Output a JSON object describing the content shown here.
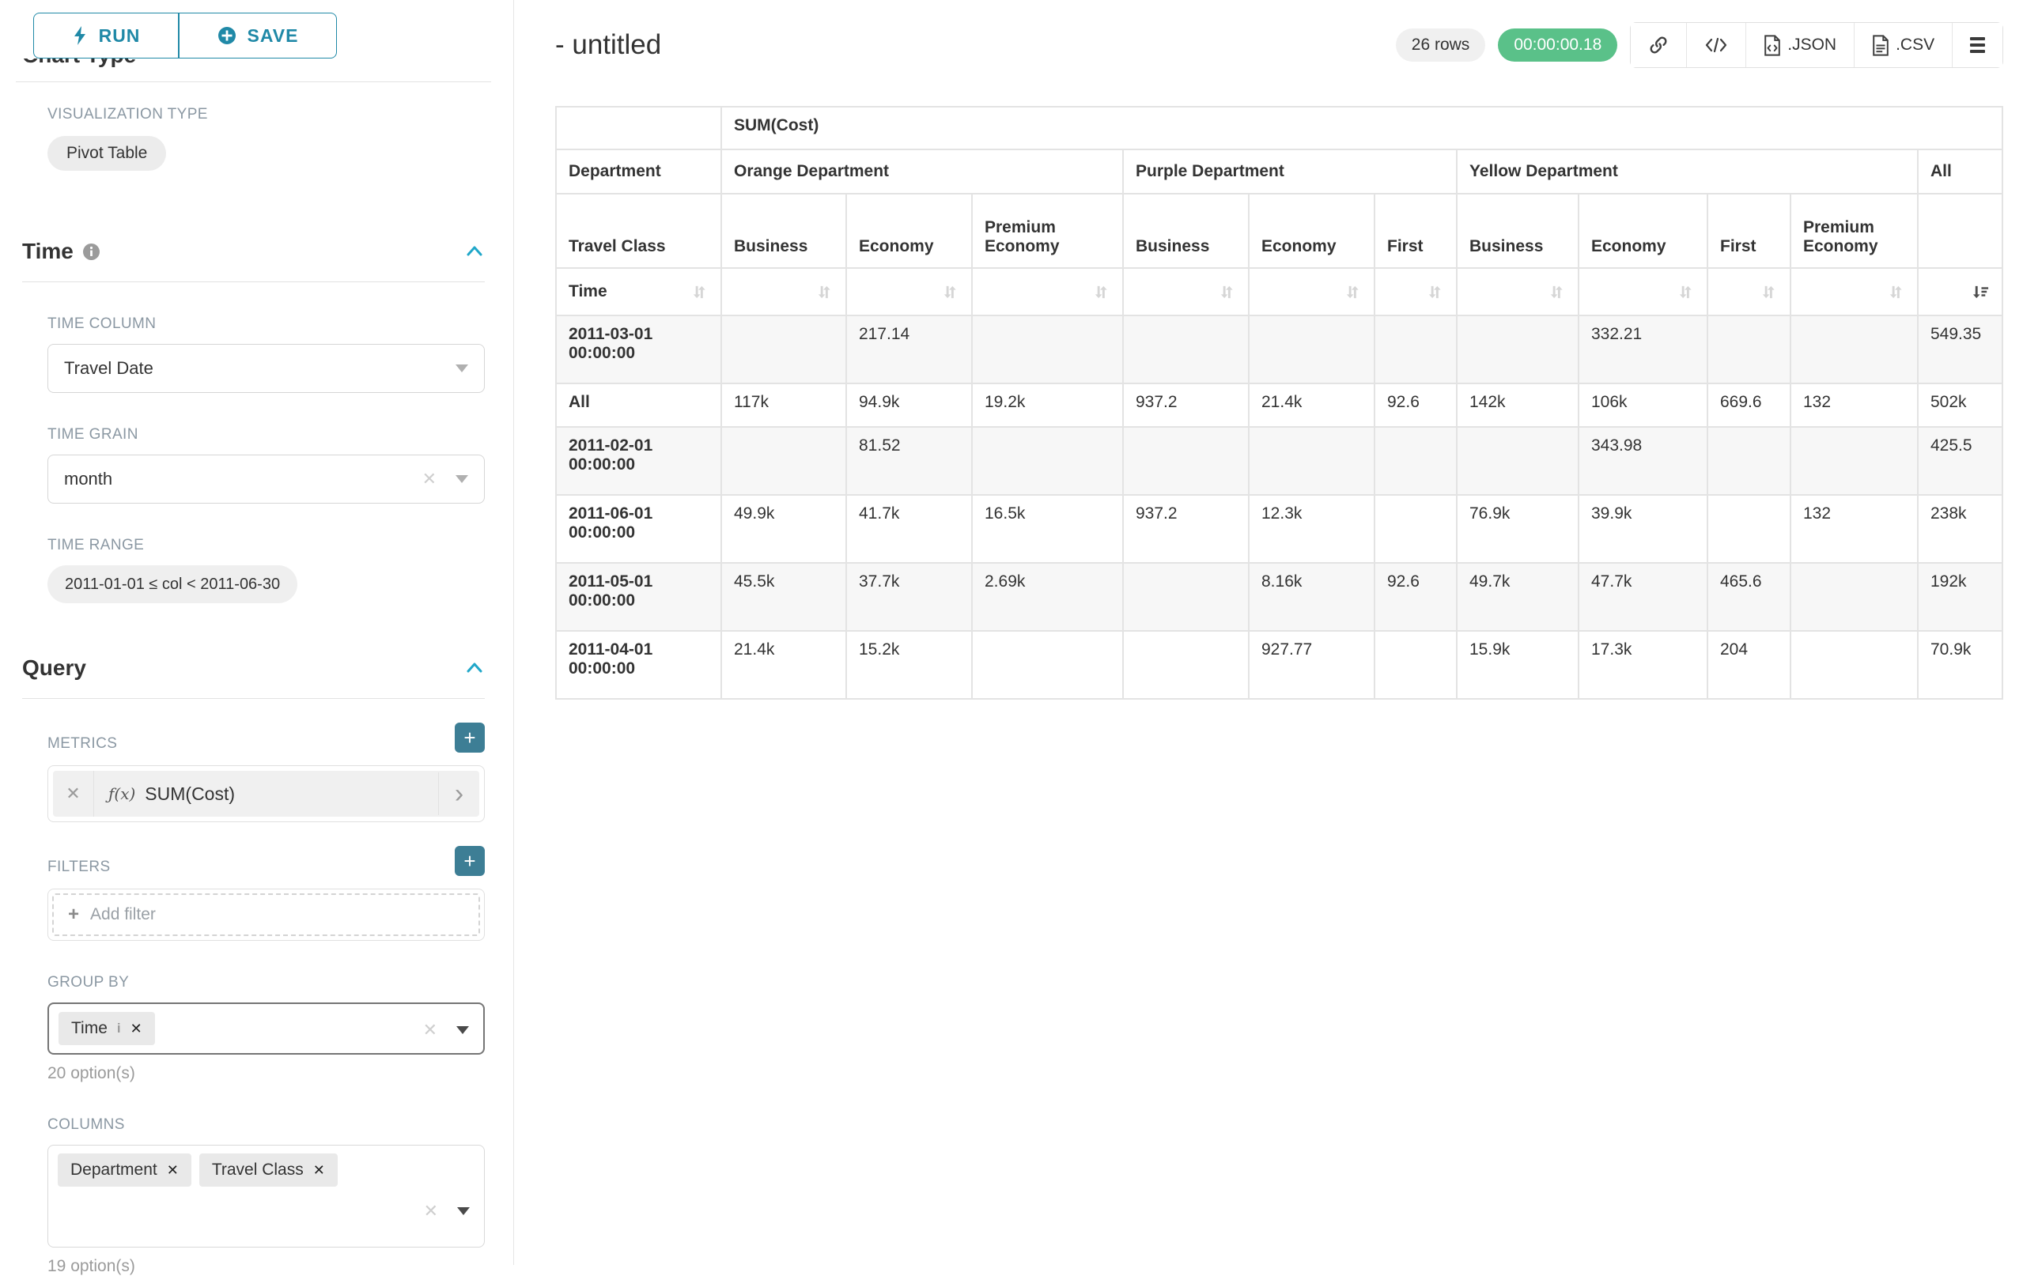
{
  "sidebar": {
    "run_label": "RUN",
    "save_label": "SAVE",
    "chart_type_heading": "Chart Type",
    "visualization_type_label": "VISUALIZATION TYPE",
    "visualization_type": "Pivot Table",
    "time": {
      "heading": "Time",
      "time_column_label": "TIME COLUMN",
      "time_column_value": "Travel Date",
      "time_grain_label": "TIME GRAIN",
      "time_grain_value": "month",
      "time_range_label": "TIME RANGE",
      "time_range_value": "2011-01-01 ≤ col < 2011-06-30"
    },
    "query": {
      "heading": "Query",
      "metrics_label": "METRICS",
      "metric_fn": "ƒ(x)",
      "metric_name": "SUM(Cost)",
      "filters_label": "FILTERS",
      "add_filter_label": "Add filter",
      "group_by_label": "GROUP BY",
      "group_by_value": "Time",
      "group_by_options": "20 option(s)",
      "columns_label": "COLUMNS",
      "columns_values": [
        "Department",
        "Travel Class"
      ],
      "columns_options": "19 option(s)"
    }
  },
  "header": {
    "title": "- untitled",
    "row_count": "26 rows",
    "elapsed": "00:00:00.18",
    "export_json_label": ".JSON",
    "export_csv_label": ".CSV"
  },
  "colors": {
    "accent": "#20a7c9",
    "button_teal": "#2089a7",
    "plus_teal": "#3d7e95",
    "success_green": "#5ac189",
    "table_border": "#e3e3e3",
    "stripe": "#f7f7f7"
  },
  "chart_data": {
    "type": "table",
    "title": "SUM(Cost)",
    "metric_label": "SUM(Cost)",
    "col_dimension_label": "Department",
    "row_dimension_label": "Travel Class",
    "time_row_label": "Time",
    "column_groups": [
      {
        "label": "Orange Department",
        "children": [
          "Business",
          "Economy",
          "Premium Economy"
        ]
      },
      {
        "label": "Purple Department",
        "children": [
          "Business",
          "Economy",
          "First"
        ]
      },
      {
        "label": "Yellow Department",
        "children": [
          "Business",
          "Economy",
          "First",
          "Premium Economy"
        ]
      },
      {
        "label": "All",
        "children": [
          ""
        ]
      }
    ],
    "sort": {
      "column": "All",
      "direction": "desc"
    },
    "rows": [
      {
        "label": "2011-03-01 00:00:00",
        "values": [
          "",
          "217.14",
          "",
          "",
          "",
          "",
          "",
          "332.21",
          "",
          "",
          "549.35"
        ]
      },
      {
        "label": "All",
        "values": [
          "117k",
          "94.9k",
          "19.2k",
          "937.2",
          "21.4k",
          "92.6",
          "142k",
          "106k",
          "669.6",
          "132",
          "502k"
        ]
      },
      {
        "label": "2011-02-01 00:00:00",
        "values": [
          "",
          "81.52",
          "",
          "",
          "",
          "",
          "",
          "343.98",
          "",
          "",
          "425.5"
        ]
      },
      {
        "label": "2011-06-01 00:00:00",
        "values": [
          "49.9k",
          "41.7k",
          "16.5k",
          "937.2",
          "12.3k",
          "",
          "76.9k",
          "39.9k",
          "",
          "132",
          "238k"
        ]
      },
      {
        "label": "2011-05-01 00:00:00",
        "values": [
          "45.5k",
          "37.7k",
          "2.69k",
          "",
          "8.16k",
          "92.6",
          "49.7k",
          "47.7k",
          "465.6",
          "",
          "192k"
        ]
      },
      {
        "label": "2011-04-01 00:00:00",
        "values": [
          "21.4k",
          "15.2k",
          "",
          "",
          "927.77",
          "",
          "15.9k",
          "17.3k",
          "204",
          "",
          "70.9k"
        ]
      }
    ]
  }
}
